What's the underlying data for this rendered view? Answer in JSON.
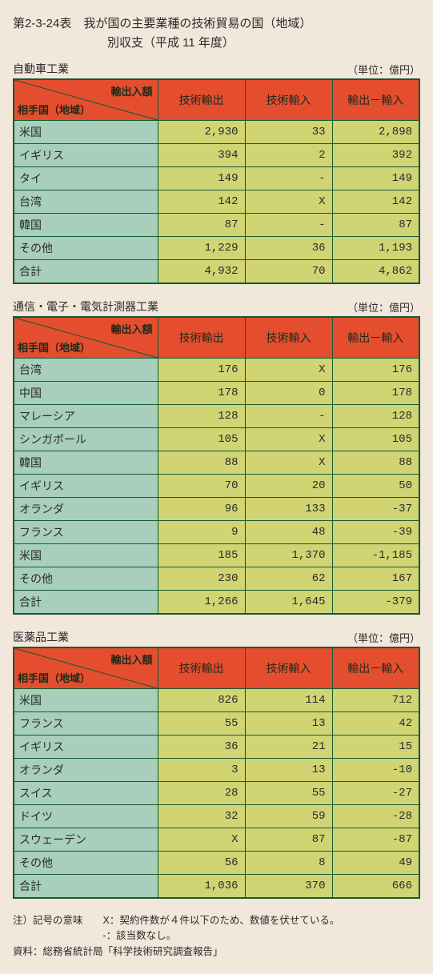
{
  "title": {
    "prefix": "第2-3-24表",
    "main": "我が国の主要業種の技術貿易の国（地域）",
    "sub": "別収支（平成 11 年度）"
  },
  "unit_label": "（単位：億円）",
  "diag_header": {
    "top_right": "輸出入額",
    "bottom_left": "相手国（地域）"
  },
  "col_headers": [
    "技術輸出",
    "技術輸入",
    "輸出－輸入"
  ],
  "sections": [
    {
      "name": "自動車工業",
      "rows": [
        {
          "c": "米国",
          "v": [
            "2,930",
            "33",
            "2,898"
          ]
        },
        {
          "c": "イギリス",
          "v": [
            "394",
            "2",
            "392"
          ]
        },
        {
          "c": "タイ",
          "v": [
            "149",
            "-",
            "149"
          ]
        },
        {
          "c": "台湾",
          "v": [
            "142",
            "X",
            "142"
          ]
        },
        {
          "c": "韓国",
          "v": [
            "87",
            "-",
            "87"
          ]
        },
        {
          "c": "その他",
          "v": [
            "1,229",
            "36",
            "1,193"
          ]
        },
        {
          "c": "合計",
          "v": [
            "4,932",
            "70",
            "4,862"
          ]
        }
      ]
    },
    {
      "name": "通信・電子・電気計測器工業",
      "rows": [
        {
          "c": "台湾",
          "v": [
            "176",
            "X",
            "176"
          ]
        },
        {
          "c": "中国",
          "v": [
            "178",
            "0",
            "178"
          ]
        },
        {
          "c": "マレーシア",
          "v": [
            "128",
            "-",
            "128"
          ]
        },
        {
          "c": "シンガポール",
          "v": [
            "105",
            "X",
            "105"
          ]
        },
        {
          "c": "韓国",
          "v": [
            "88",
            "X",
            "88"
          ]
        },
        {
          "c": "イギリス",
          "v": [
            "70",
            "20",
            "50"
          ]
        },
        {
          "c": "オランダ",
          "v": [
            "96",
            "133",
            "-37"
          ]
        },
        {
          "c": "フランス",
          "v": [
            "9",
            "48",
            "-39"
          ]
        },
        {
          "c": "米国",
          "v": [
            "185",
            "1,370",
            "-1,185"
          ]
        },
        {
          "c": "その他",
          "v": [
            "230",
            "62",
            "167"
          ]
        },
        {
          "c": "合計",
          "v": [
            "1,266",
            "1,645",
            "-379"
          ]
        }
      ]
    },
    {
      "name": "医薬品工業",
      "rows": [
        {
          "c": "米国",
          "v": [
            "826",
            "114",
            "712"
          ]
        },
        {
          "c": "フランス",
          "v": [
            "55",
            "13",
            "42"
          ]
        },
        {
          "c": "イギリス",
          "v": [
            "36",
            "21",
            "15"
          ]
        },
        {
          "c": "オランダ",
          "v": [
            "3",
            "13",
            "-10"
          ]
        },
        {
          "c": "スイス",
          "v": [
            "28",
            "55",
            "-27"
          ]
        },
        {
          "c": "ドイツ",
          "v": [
            "32",
            "59",
            "-28"
          ]
        },
        {
          "c": "スウェーデン",
          "v": [
            "X",
            "87",
            "-87"
          ]
        },
        {
          "c": "その他",
          "v": [
            "56",
            "8",
            "49"
          ]
        },
        {
          "c": "合計",
          "v": [
            "1,036",
            "370",
            "666"
          ]
        }
      ]
    }
  ],
  "notes": {
    "line1_label": "注）記号の意味",
    "line1_x": "X：契約件数が４件以下のため、数値を伏せている。",
    "line1_dash": "-：該当数なし。",
    "line2": "資料：総務省統計局「科学技術研究調査報告」"
  }
}
